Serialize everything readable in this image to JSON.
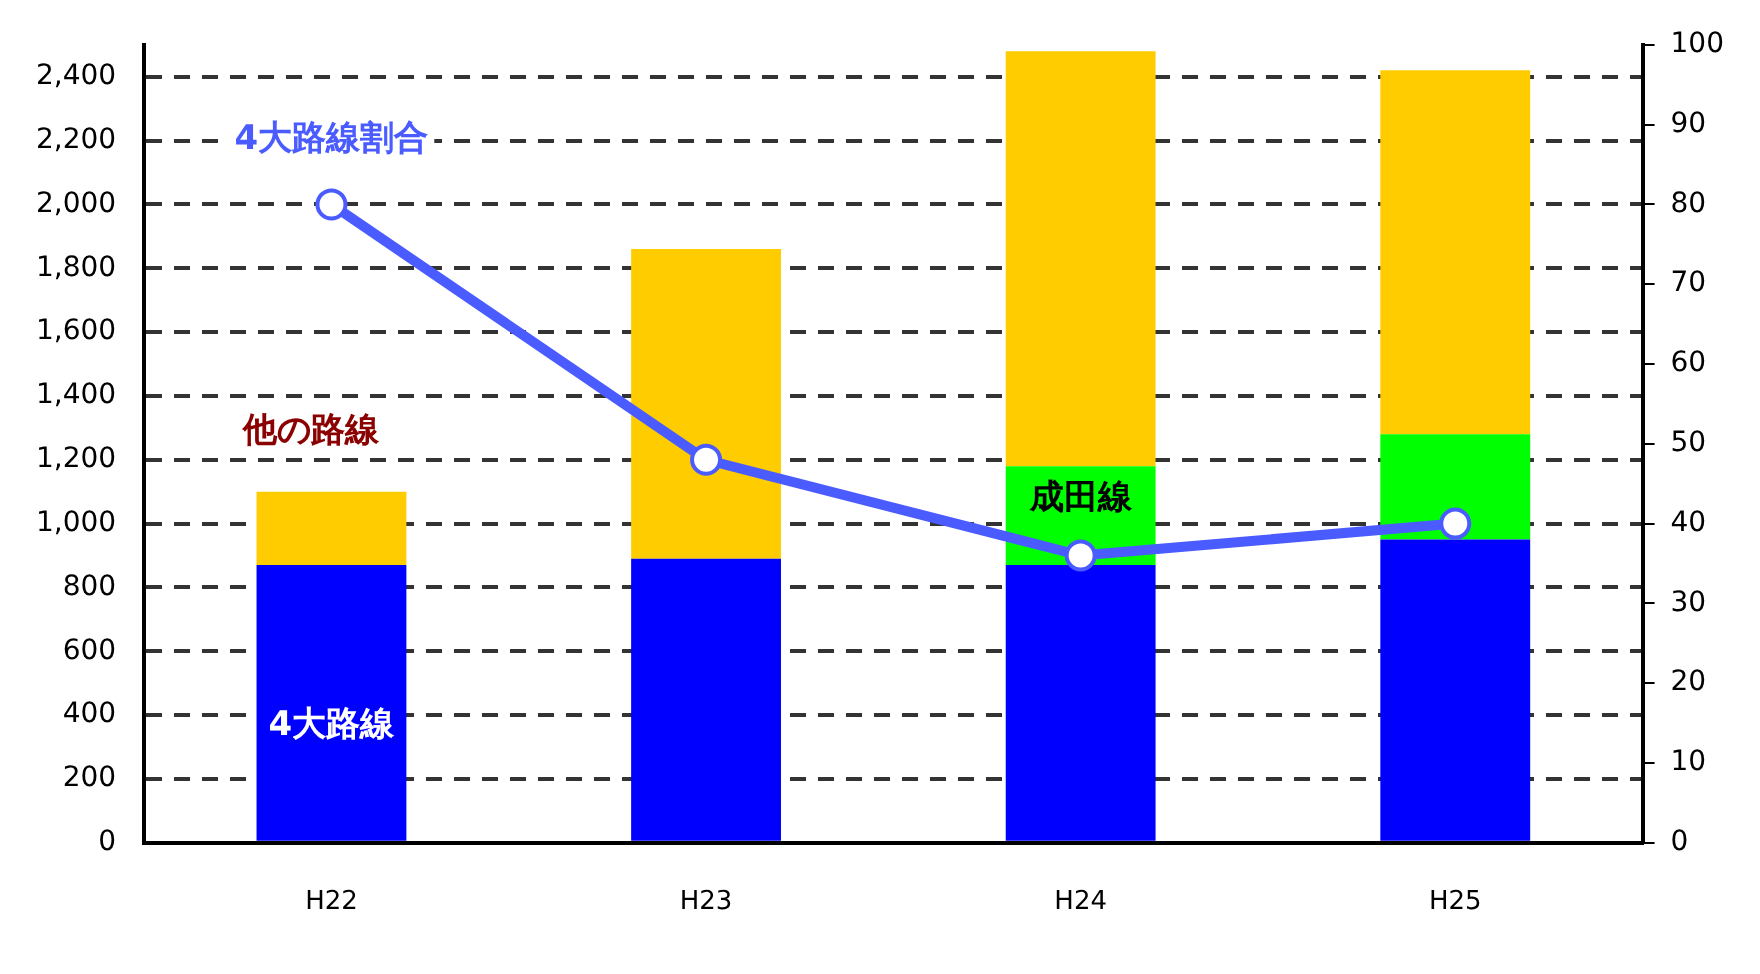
{
  "chart_data": {
    "type": "bar",
    "stacked": true,
    "categories": [
      "H22",
      "H23",
      "H24",
      "H25"
    ],
    "series": [
      {
        "name": "4大路線",
        "color": "#0000ff",
        "values": [
          870,
          890,
          870,
          950
        ]
      },
      {
        "name": "成田線",
        "color": "#00ff00",
        "values": [
          null,
          null,
          310,
          330
        ]
      },
      {
        "name": "他の路線",
        "color": "#ffcc00",
        "values": [
          230,
          970,
          1300,
          1140
        ]
      },
      {
        "name": "4大路線割合",
        "type": "line",
        "axis": "y2",
        "color": "#4a5cff",
        "marker": "circle",
        "values": [
          80,
          48,
          36,
          40
        ]
      }
    ],
    "ylim": [
      0,
      2500
    ],
    "yticks": [
      0,
      200,
      400,
      600,
      800,
      {
        "value": 1000,
        "label": "1,000"
      },
      {
        "value": 1200,
        "label": "1,200"
      },
      {
        "value": 1400,
        "label": "1,400"
      },
      {
        "value": 1600,
        "label": "1,600"
      },
      {
        "value": 1800,
        "label": "1,800"
      },
      {
        "value": 2000,
        "label": "2,000"
      },
      {
        "value": 2200,
        "label": "2,200"
      },
      {
        "value": 2400,
        "label": "2,400"
      }
    ],
    "y2lim": [
      0,
      100
    ],
    "y2ticks": [
      0,
      10,
      20,
      30,
      40,
      50,
      60,
      70,
      80,
      90,
      100
    ],
    "grid": "y",
    "legend": false
  }
}
